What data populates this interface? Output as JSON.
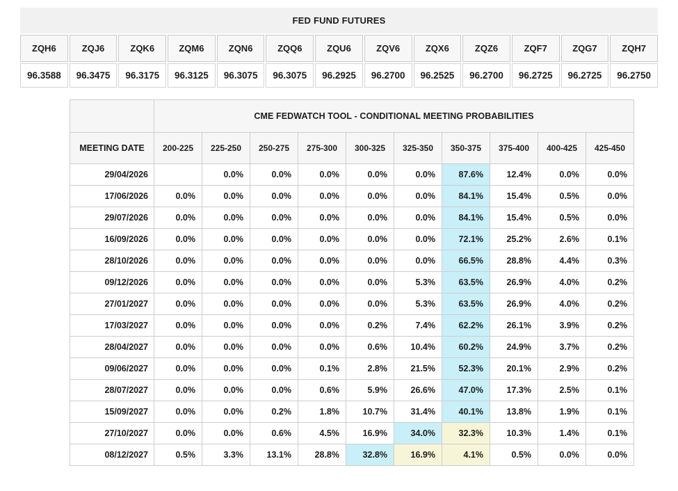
{
  "futures_table": {
    "title": "FED FUND FUTURES",
    "columns": [
      "ZQH6",
      "ZQJ6",
      "ZQK6",
      "ZQM6",
      "ZQN6",
      "ZQQ6",
      "ZQU6",
      "ZQV6",
      "ZQX6",
      "ZQZ6",
      "ZQF7",
      "ZQG7",
      "ZQH7"
    ],
    "values": [
      "96.3588",
      "96.3475",
      "96.3175",
      "96.3125",
      "96.3075",
      "96.3075",
      "96.2925",
      "96.2700",
      "96.2525",
      "96.2700",
      "96.2725",
      "96.2725",
      "96.2750"
    ]
  },
  "fedwatch_table": {
    "title": "CME FEDWATCH TOOL - CONDITIONAL MEETING PROBABILITIES",
    "date_header": "MEETING DATE",
    "range_headers": [
      "200-225",
      "225-250",
      "250-275",
      "275-300",
      "300-325",
      "325-350",
      "350-375",
      "375-400",
      "400-425",
      "425-450"
    ],
    "colors": {
      "highlight_cyan": "#c9eff8",
      "highlight_yellow": "#f7f5d8"
    },
    "rows": [
      {
        "date": "29/04/2026",
        "values": [
          "",
          "0.0%",
          "0.0%",
          "0.0%",
          "0.0%",
          "0.0%",
          "87.6%",
          "12.4%",
          "0.0%",
          "0.0%"
        ],
        "hl": [
          "",
          "",
          "",
          "",
          "",
          "",
          "c",
          "",
          "",
          ""
        ]
      },
      {
        "date": "17/06/2026",
        "values": [
          "0.0%",
          "0.0%",
          "0.0%",
          "0.0%",
          "0.0%",
          "0.0%",
          "84.1%",
          "15.4%",
          "0.5%",
          "0.0%"
        ],
        "hl": [
          "",
          "",
          "",
          "",
          "",
          "",
          "c",
          "",
          "",
          ""
        ]
      },
      {
        "date": "29/07/2026",
        "values": [
          "0.0%",
          "0.0%",
          "0.0%",
          "0.0%",
          "0.0%",
          "0.0%",
          "84.1%",
          "15.4%",
          "0.5%",
          "0.0%"
        ],
        "hl": [
          "",
          "",
          "",
          "",
          "",
          "",
          "c",
          "",
          "",
          ""
        ]
      },
      {
        "date": "16/09/2026",
        "values": [
          "0.0%",
          "0.0%",
          "0.0%",
          "0.0%",
          "0.0%",
          "0.0%",
          "72.1%",
          "25.2%",
          "2.6%",
          "0.1%"
        ],
        "hl": [
          "",
          "",
          "",
          "",
          "",
          "",
          "c",
          "",
          "",
          ""
        ]
      },
      {
        "date": "28/10/2026",
        "values": [
          "0.0%",
          "0.0%",
          "0.0%",
          "0.0%",
          "0.0%",
          "0.0%",
          "66.5%",
          "28.8%",
          "4.4%",
          "0.3%"
        ],
        "hl": [
          "",
          "",
          "",
          "",
          "",
          "",
          "c",
          "",
          "",
          ""
        ]
      },
      {
        "date": "09/12/2026",
        "values": [
          "0.0%",
          "0.0%",
          "0.0%",
          "0.0%",
          "0.0%",
          "5.3%",
          "63.5%",
          "26.9%",
          "4.0%",
          "0.2%"
        ],
        "hl": [
          "",
          "",
          "",
          "",
          "",
          "",
          "c",
          "",
          "",
          ""
        ]
      },
      {
        "date": "27/01/2027",
        "values": [
          "0.0%",
          "0.0%",
          "0.0%",
          "0.0%",
          "0.0%",
          "5.3%",
          "63.5%",
          "26.9%",
          "4.0%",
          "0.2%"
        ],
        "hl": [
          "",
          "",
          "",
          "",
          "",
          "",
          "c",
          "",
          "",
          ""
        ]
      },
      {
        "date": "17/03/2027",
        "values": [
          "0.0%",
          "0.0%",
          "0.0%",
          "0.0%",
          "0.2%",
          "7.4%",
          "62.2%",
          "26.1%",
          "3.9%",
          "0.2%"
        ],
        "hl": [
          "",
          "",
          "",
          "",
          "",
          "",
          "c",
          "",
          "",
          ""
        ]
      },
      {
        "date": "28/04/2027",
        "values": [
          "0.0%",
          "0.0%",
          "0.0%",
          "0.0%",
          "0.6%",
          "10.4%",
          "60.2%",
          "24.9%",
          "3.7%",
          "0.2%"
        ],
        "hl": [
          "",
          "",
          "",
          "",
          "",
          "",
          "c",
          "",
          "",
          ""
        ]
      },
      {
        "date": "09/06/2027",
        "values": [
          "0.0%",
          "0.0%",
          "0.0%",
          "0.1%",
          "2.8%",
          "21.5%",
          "52.3%",
          "20.1%",
          "2.9%",
          "0.2%"
        ],
        "hl": [
          "",
          "",
          "",
          "",
          "",
          "",
          "c",
          "",
          "",
          ""
        ]
      },
      {
        "date": "28/07/2027",
        "values": [
          "0.0%",
          "0.0%",
          "0.0%",
          "0.6%",
          "5.9%",
          "26.6%",
          "47.0%",
          "17.3%",
          "2.5%",
          "0.1%"
        ],
        "hl": [
          "",
          "",
          "",
          "",
          "",
          "",
          "c",
          "",
          "",
          ""
        ]
      },
      {
        "date": "15/09/2027",
        "values": [
          "0.0%",
          "0.0%",
          "0.2%",
          "1.8%",
          "10.7%",
          "31.4%",
          "40.1%",
          "13.8%",
          "1.9%",
          "0.1%"
        ],
        "hl": [
          "",
          "",
          "",
          "",
          "",
          "",
          "c",
          "",
          "",
          ""
        ]
      },
      {
        "date": "27/10/2027",
        "values": [
          "0.0%",
          "0.0%",
          "0.6%",
          "4.5%",
          "16.9%",
          "34.0%",
          "32.3%",
          "10.3%",
          "1.4%",
          "0.1%"
        ],
        "hl": [
          "",
          "",
          "",
          "",
          "",
          "c",
          "y",
          "",
          "",
          ""
        ]
      },
      {
        "date": "08/12/2027",
        "values": [
          "0.5%",
          "3.3%",
          "13.1%",
          "28.8%",
          "32.8%",
          "16.9%",
          "4.1%",
          "0.5%",
          "0.0%",
          "0.0%"
        ],
        "hl": [
          "",
          "",
          "",
          "",
          "c",
          "y",
          "y",
          "",
          "",
          ""
        ]
      }
    ]
  }
}
